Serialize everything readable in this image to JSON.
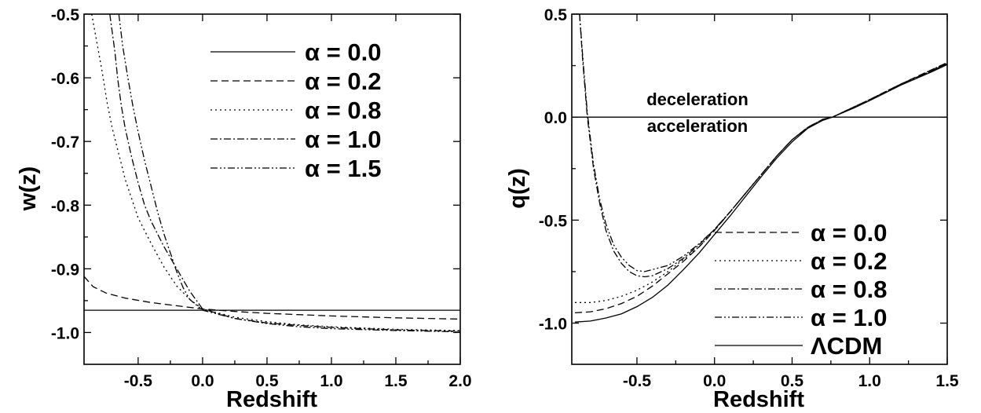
{
  "chart_data": [
    {
      "type": "line",
      "xlabel": "Redshift",
      "ylabel": "w(z)",
      "xlim": [
        -0.92,
        2.0
      ],
      "ylim": [
        -1.05,
        -0.5
      ],
      "xticks": [
        -0.5,
        0.0,
        0.5,
        1.0,
        1.5,
        2.0
      ],
      "xtick_labels": [
        "-0.5",
        "0.0",
        "0.5",
        "1.0",
        "1.5",
        "2.0"
      ],
      "yticks": [
        -1.0,
        -0.9,
        -0.8,
        -0.7,
        -0.6,
        -0.5
      ],
      "ytick_labels": [
        "-1.0",
        "-0.9",
        "-0.8",
        "-0.7",
        "-0.6",
        "-0.5"
      ],
      "legend_position": "top-right",
      "series": [
        {
          "name": "α = 0.0",
          "dash": "solid",
          "x": [
            -0.92,
            0.0,
            0.5,
            1.0,
            1.5,
            2.0
          ],
          "y": [
            -0.965,
            -0.965,
            -0.965,
            -0.965,
            -0.965,
            -0.965
          ]
        },
        {
          "name": "α = 0.2",
          "dash": "dash",
          "x": [
            -0.92,
            -0.85,
            -0.75,
            -0.6,
            -0.4,
            -0.2,
            0.0,
            0.25,
            0.5,
            1.0,
            1.5,
            2.0
          ],
          "y": [
            -0.912,
            -0.928,
            -0.938,
            -0.946,
            -0.953,
            -0.958,
            -0.963,
            -0.967,
            -0.97,
            -0.974,
            -0.977,
            -0.979
          ]
        },
        {
          "name": "α = 0.8",
          "dash": "dot",
          "x": [
            -0.86,
            -0.82,
            -0.78,
            -0.74,
            -0.7,
            -0.65,
            -0.6,
            -0.55,
            -0.5,
            -0.4,
            -0.3,
            -0.2,
            -0.1,
            0.0,
            0.25,
            0.5,
            0.75,
            1.0,
            1.5,
            2.0
          ],
          "y": [
            -0.5,
            -0.545,
            -0.59,
            -0.64,
            -0.68,
            -0.72,
            -0.76,
            -0.79,
            -0.82,
            -0.86,
            -0.897,
            -0.927,
            -0.948,
            -0.963,
            -0.976,
            -0.983,
            -0.988,
            -0.991,
            -0.995,
            -0.997
          ]
        },
        {
          "name": "α = 1.0",
          "dash": "dashdot",
          "x": [
            -0.72,
            -0.7,
            -0.68,
            -0.66,
            -0.63,
            -0.6,
            -0.55,
            -0.5,
            -0.45,
            -0.4,
            -0.3,
            -0.2,
            -0.1,
            0.0,
            0.25,
            0.5,
            0.75,
            1.0,
            1.5,
            2.0
          ],
          "y": [
            -0.5,
            -0.53,
            -0.56,
            -0.6,
            -0.645,
            -0.68,
            -0.725,
            -0.765,
            -0.8,
            -0.825,
            -0.865,
            -0.9,
            -0.935,
            -0.963,
            -0.978,
            -0.985,
            -0.989,
            -0.992,
            -0.996,
            -0.998
          ]
        },
        {
          "name": "α = 1.5",
          "dash": "dashdotdot",
          "x": [
            -0.65,
            -0.62,
            -0.58,
            -0.54,
            -0.5,
            -0.45,
            -0.4,
            -0.35,
            -0.3,
            -0.25,
            -0.2,
            -0.15,
            -0.1,
            0.0,
            0.25,
            0.5,
            0.75,
            1.0,
            1.5,
            2.0
          ],
          "y": [
            -0.5,
            -0.55,
            -0.6,
            -0.645,
            -0.685,
            -0.73,
            -0.77,
            -0.81,
            -0.845,
            -0.875,
            -0.905,
            -0.93,
            -0.948,
            -0.965,
            -0.978,
            -0.986,
            -0.991,
            -0.994,
            -0.997,
            -0.999
          ]
        }
      ]
    },
    {
      "type": "line",
      "xlabel": "Redshift",
      "ylabel": "q(z)",
      "xlim": [
        -0.92,
        1.5
      ],
      "ylim": [
        -1.2,
        0.5
      ],
      "xticks": [
        -0.5,
        0.0,
        0.5,
        1.0,
        1.5
      ],
      "xtick_labels": [
        "-0.5",
        "0.0",
        "0.5",
        "1.0",
        "1.5"
      ],
      "yticks": [
        -1.0,
        -0.5,
        0.0,
        0.5
      ],
      "ytick_labels": [
        "-1.0",
        "-0.5",
        "0.0",
        "0.5"
      ],
      "legend_position": "bottom-right",
      "annotations": [
        "deceleration",
        "acceleration"
      ],
      "reference_line_y": 0.0,
      "series": [
        {
          "name": "α = 0.0",
          "dash": "dash",
          "x": [
            -0.9,
            -0.8,
            -0.7,
            -0.6,
            -0.5,
            -0.4,
            -0.3,
            -0.2,
            -0.1,
            0.0,
            0.1,
            0.2,
            0.3,
            0.4,
            0.5,
            0.6,
            0.7,
            0.76,
            0.9,
            1.0,
            1.2,
            1.4,
            1.5
          ],
          "y": [
            -0.95,
            -0.945,
            -0.93,
            -0.905,
            -0.87,
            -0.82,
            -0.76,
            -0.7,
            -0.63,
            -0.55,
            -0.46,
            -0.37,
            -0.28,
            -0.19,
            -0.11,
            -0.05,
            -0.01,
            0.0,
            0.05,
            0.085,
            0.16,
            0.23,
            0.265
          ]
        },
        {
          "name": "α = 0.2",
          "dash": "dot",
          "x": [
            -0.9,
            -0.8,
            -0.7,
            -0.6,
            -0.5,
            -0.4,
            -0.3,
            -0.2,
            -0.1,
            0.0,
            0.1,
            0.2,
            0.3,
            0.4,
            0.5,
            0.6,
            0.7,
            0.76,
            0.9,
            1.0,
            1.2,
            1.4,
            1.5
          ],
          "y": [
            -0.9,
            -0.9,
            -0.89,
            -0.87,
            -0.84,
            -0.8,
            -0.75,
            -0.69,
            -0.63,
            -0.55,
            -0.46,
            -0.37,
            -0.28,
            -0.19,
            -0.11,
            -0.05,
            -0.01,
            0.0,
            0.05,
            0.085,
            0.16,
            0.23,
            0.265
          ]
        },
        {
          "name": "α = 0.8",
          "dash": "dashdot",
          "x": [
            -0.87,
            -0.85,
            -0.82,
            -0.78,
            -0.74,
            -0.7,
            -0.65,
            -0.6,
            -0.55,
            -0.5,
            -0.45,
            -0.4,
            -0.3,
            -0.2,
            -0.1,
            0.0,
            0.1,
            0.2,
            0.3,
            0.4,
            0.5,
            0.6,
            0.7,
            0.76,
            0.9,
            1.0,
            1.2,
            1.4,
            1.5
          ],
          "y": [
            0.5,
            0.28,
            0.0,
            -0.25,
            -0.42,
            -0.55,
            -0.65,
            -0.71,
            -0.75,
            -0.77,
            -0.775,
            -0.77,
            -0.735,
            -0.685,
            -0.62,
            -0.545,
            -0.46,
            -0.37,
            -0.28,
            -0.19,
            -0.11,
            -0.05,
            -0.01,
            0.0,
            0.05,
            0.085,
            0.16,
            0.225,
            0.26
          ]
        },
        {
          "name": "α = 1.0",
          "dash": "dashdotdot",
          "x": [
            -0.87,
            -0.85,
            -0.82,
            -0.78,
            -0.74,
            -0.7,
            -0.65,
            -0.6,
            -0.55,
            -0.5,
            -0.45,
            -0.4,
            -0.3,
            -0.2,
            -0.1,
            0.0,
            0.1,
            0.2,
            0.3,
            0.4,
            0.5,
            0.6,
            0.7,
            0.76,
            0.9,
            1.0,
            1.2,
            1.4,
            1.5
          ],
          "y": [
            0.5,
            0.3,
            0.02,
            -0.23,
            -0.4,
            -0.52,
            -0.62,
            -0.68,
            -0.72,
            -0.745,
            -0.75,
            -0.74,
            -0.72,
            -0.675,
            -0.615,
            -0.545,
            -0.46,
            -0.37,
            -0.28,
            -0.19,
            -0.11,
            -0.05,
            -0.01,
            0.0,
            0.05,
            0.085,
            0.16,
            0.225,
            0.26
          ]
        },
        {
          "name": "ΛCDM",
          "dash": "solid",
          "x": [
            -0.9,
            -0.8,
            -0.7,
            -0.6,
            -0.5,
            -0.4,
            -0.3,
            -0.2,
            -0.1,
            0.0,
            0.1,
            0.2,
            0.3,
            0.4,
            0.5,
            0.6,
            0.7,
            0.76,
            0.9,
            1.0,
            1.2,
            1.4,
            1.5
          ],
          "y": [
            -0.995,
            -0.99,
            -0.975,
            -0.955,
            -0.92,
            -0.875,
            -0.815,
            -0.74,
            -0.66,
            -0.57,
            -0.48,
            -0.385,
            -0.29,
            -0.2,
            -0.12,
            -0.055,
            -0.015,
            0.0,
            0.045,
            0.08,
            0.155,
            0.22,
            0.255
          ]
        }
      ]
    }
  ]
}
